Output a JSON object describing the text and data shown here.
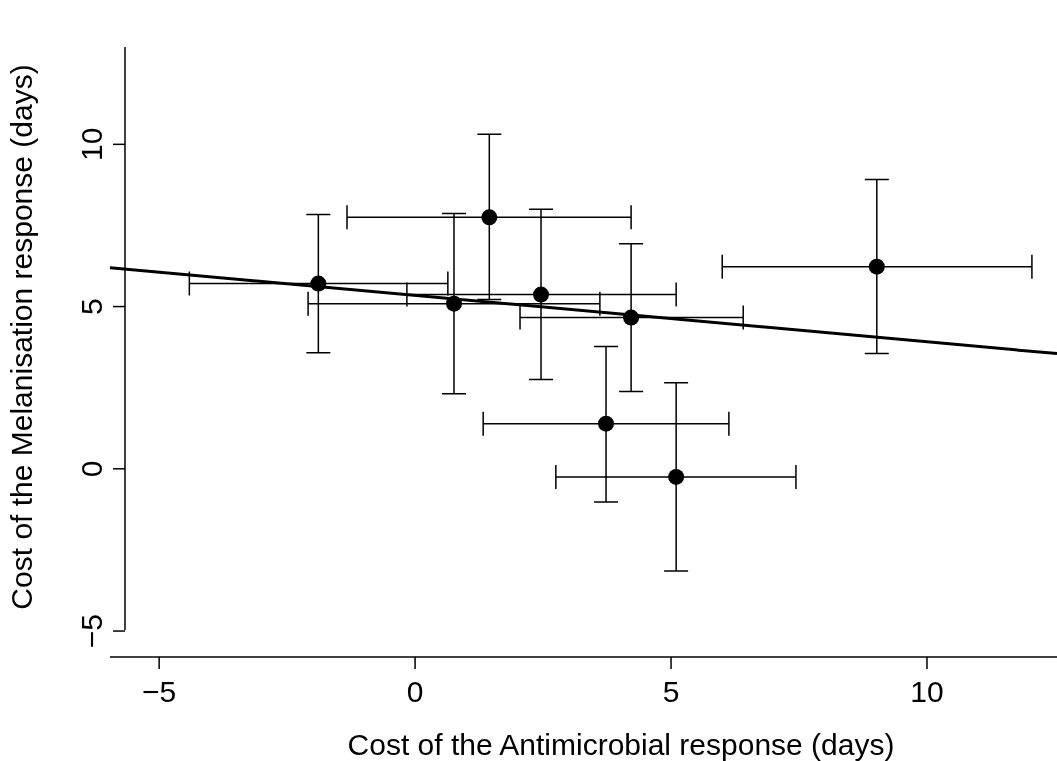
{
  "chart_data": {
    "type": "scatter",
    "xlabel": "Cost of the Antimicrobial response (days)",
    "ylabel": "Cost of the Melanisation response (days)",
    "xlim": [
      -5.96,
      12.54
    ],
    "ylim": [
      -5.8,
      13
    ],
    "xticks": [
      {
        "value": -5,
        "label": "−5"
      },
      0,
      5,
      10
    ],
    "yticks": [
      {
        "value": -5,
        "label": "−5"
      },
      0,
      5,
      10
    ],
    "grid": false,
    "marker": "circle",
    "series": [
      {
        "color": "#000000",
        "x": [
          -1.89,
          0.76,
          1.45,
          2.46,
          4.22,
          3.73,
          5.1,
          9.02
        ],
        "values": [
          5.71,
          5.09,
          7.75,
          5.37,
          4.66,
          1.39,
          -0.25,
          6.23
        ],
        "errors": [
          [
            3.58,
            7.84
          ],
          [
            2.31,
            7.87
          ],
          [
            5.22,
            10.31
          ],
          [
            2.75,
            8.0
          ],
          [
            2.38,
            6.94
          ],
          [
            -1.02,
            3.77
          ],
          [
            -3.15,
            2.65
          ],
          [
            3.55,
            8.92
          ]
        ],
        "xerrors": [
          [
            -4.41,
            0.64
          ],
          [
            -2.09,
            3.61
          ],
          [
            -1.33,
            4.22
          ],
          [
            -0.16,
            5.1
          ],
          [
            2.05,
            6.41
          ],
          [
            1.33,
            6.13
          ],
          [
            2.75,
            7.44
          ],
          [
            6.0,
            12.05
          ]
        ]
      },
      {
        "type": "line",
        "color": "#000000",
        "x": [
          -5.96,
          12.54
        ],
        "values": [
          6.2,
          3.55
        ],
        "line_style": "solid",
        "marker": "none"
      }
    ]
  }
}
